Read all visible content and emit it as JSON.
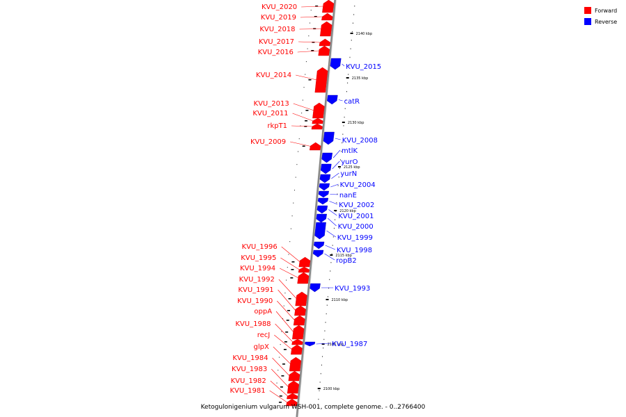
{
  "caption": "Ketogulonigenium vulgarum WSH-001, complete genome. - 0..2766400",
  "legend": [
    {
      "label": "Forward",
      "color": "#ff0000"
    },
    {
      "label": "Reverse",
      "color": "#0000ff"
    }
  ],
  "ticks": [
    "2140 kbp",
    "2135 kbp",
    "2130 kbp",
    "2125 kbp",
    "2120 kbp",
    "2115 kbp",
    "2110 kbp",
    "2105 kbp",
    "2100 kbp"
  ],
  "forward_genes": [
    "KVU_2020",
    "KVU_2019",
    "KVU_2018",
    "KVU_2017",
    "KVU_2016",
    "KVU_2014",
    "KVU_2013",
    "KVU_2011",
    "rkpT1",
    "KVU_2009",
    "KVU_1996",
    "KVU_1995",
    "KVU_1994",
    "KVU_1992",
    "KVU_1991",
    "KVU_1990",
    "oppA",
    "KVU_1988",
    "recJ",
    "glpX",
    "KVU_1984",
    "KVU_1983",
    "KVU_1982",
    "KVU_1981"
  ],
  "reverse_genes": [
    "KVU_2015",
    "catR",
    "KVU_2008",
    "mtlK",
    "yurO",
    "yurN",
    "KVU_2004",
    "nanE",
    "KVU_2002",
    "KVU_2001",
    "KVU_2000",
    "KVU_1999",
    "KVU_1998",
    "ropB2",
    "KVU_1993",
    "KVU_1987"
  ]
}
